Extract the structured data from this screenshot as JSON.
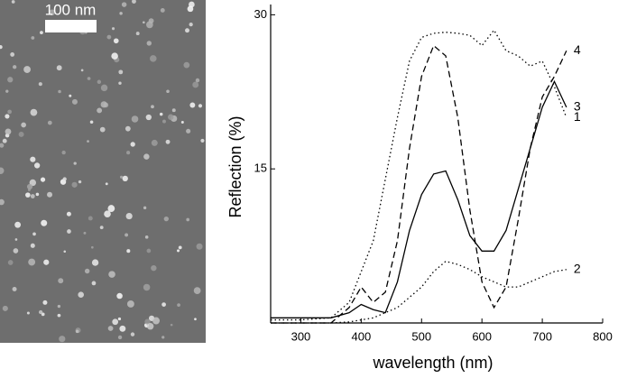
{
  "image": {
    "scale_bar": "100 nm"
  },
  "chart_data": {
    "type": "line",
    "x_label": "wavelength (nm)",
    "y_label": "Reflection (%)",
    "x": [
      250,
      300,
      350,
      380,
      400,
      420,
      440,
      460,
      480,
      500,
      520,
      540,
      560,
      580,
      600,
      620,
      640,
      660,
      680,
      700,
      720,
      740
    ],
    "series": [
      {
        "name": "1",
        "color": "#000000",
        "style": "dotted",
        "values": [
          0.3,
          0.3,
          0.5,
          2,
          5,
          8,
          14,
          20,
          25.5,
          27.8,
          28.2,
          28.3,
          28.2,
          28,
          27,
          28.5,
          26.5,
          26,
          25,
          25.5,
          23,
          20
        ]
      },
      {
        "name": "2",
        "color": "#000000",
        "style": "dotted",
        "values": [
          0,
          0,
          0,
          0.1,
          0.3,
          0.5,
          1,
          1.5,
          2.5,
          3.5,
          5,
          6,
          5.7,
          5.2,
          4.5,
          4,
          3.5,
          3.5,
          4,
          4.5,
          5,
          5.2
        ]
      },
      {
        "name": "3",
        "color": "#000000",
        "style": "solid",
        "values": [
          0.5,
          0.5,
          0.5,
          1,
          1.8,
          1.3,
          1,
          4,
          9,
          12.5,
          14.5,
          14.8,
          12,
          8.5,
          7,
          7,
          9,
          13,
          17,
          21,
          23.5,
          21
        ]
      },
      {
        "name": "4",
        "color": "#000000",
        "style": "dashed",
        "values": [
          0,
          0,
          0,
          1.5,
          3.5,
          2,
          3,
          8,
          17,
          24,
          27,
          26,
          20,
          11,
          4,
          1.5,
          3.5,
          10,
          17,
          22,
          24,
          26.5
        ]
      }
    ],
    "xlim": [
      250,
      800
    ],
    "ylim": [
      0,
      31
    ],
    "xticks": [
      300,
      400,
      500,
      600,
      700,
      800
    ],
    "yticks": [
      15,
      30
    ]
  }
}
